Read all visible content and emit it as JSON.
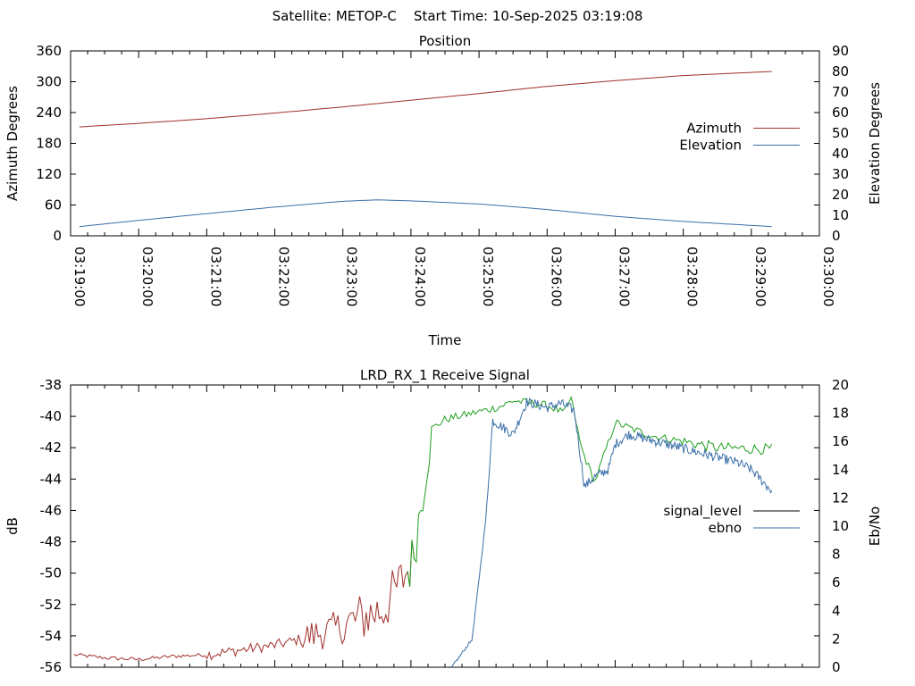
{
  "header": {
    "text": "Satellite: METOP-C    Start Time: 10-Sep-2025 03:19:08"
  },
  "chart_data": [
    {
      "type": "line",
      "title": "Position",
      "xlabel": "Time",
      "ylabel": "Azimuth Degrees",
      "y2label": "Elevation Degrees",
      "x_tick_labels": [
        "03:19:00",
        "03:20:00",
        "03:21:00",
        "03:22:00",
        "03:23:00",
        "03:24:00",
        "03:25:00",
        "03:26:00",
        "03:27:00",
        "03:28:00",
        "03:29:00",
        "03:30:00"
      ],
      "ylim": [
        0,
        360
      ],
      "y_ticks": [
        0,
        60,
        120,
        180,
        240,
        300,
        360
      ],
      "y2lim": [
        0,
        90
      ],
      "y2_ticks": [
        0,
        10,
        20,
        30,
        40,
        50,
        60,
        70,
        80,
        90
      ],
      "xlim_minutes_after_0319": [
        0,
        11
      ],
      "legend_position": "right-middle",
      "series": [
        {
          "name": "Azimuth",
          "axis": "y",
          "color": "#a0302a",
          "x_minutes_after_0319": [
            0.13,
            1,
            2,
            3,
            4,
            5,
            6,
            7,
            8,
            9,
            10.3
          ],
          "values": [
            212,
            219,
            228,
            239,
            251,
            264,
            277,
            291,
            302,
            312,
            320
          ]
        },
        {
          "name": "Elevation",
          "axis": "y2",
          "color": "#3a6fa8",
          "x_minutes_after_0319": [
            0.13,
            1,
            2,
            3,
            4,
            4.5,
            5,
            6,
            7,
            8,
            9,
            10.3
          ],
          "values": [
            4.5,
            7.5,
            10.8,
            14.0,
            16.8,
            17.5,
            17.0,
            15.5,
            12.8,
            9.5,
            7.0,
            4.5
          ]
        }
      ]
    },
    {
      "type": "line",
      "title": "LRD_RX_1 Receive Signal",
      "ylabel": "dB",
      "y2label": "Eb/No",
      "ylim": [
        -56,
        -38
      ],
      "y_ticks": [
        -56,
        -54,
        -52,
        -50,
        -48,
        -46,
        -44,
        -42,
        -40,
        -38
      ],
      "y2lim": [
        0,
        20
      ],
      "y2_ticks": [
        0,
        2,
        4,
        6,
        8,
        10,
        12,
        14,
        16,
        18,
        20
      ],
      "xlim_minutes_after_0319": [
        0,
        11
      ],
      "legend_position": "right-middle",
      "series": [
        {
          "name": "signal_level",
          "axis": "y",
          "color_low": "#a0302a",
          "color_high": "#1fa01f",
          "legend_color": "#000000",
          "x_minutes_after_0319": [
            0.05,
            0.5,
            1.0,
            1.5,
            2.0,
            2.5,
            3.0,
            3.3,
            3.6,
            4.0,
            4.3,
            4.6,
            5.0,
            5.05,
            5.3,
            5.5,
            6.0,
            6.3,
            6.5,
            7.0,
            7.25,
            7.35,
            7.5,
            7.7,
            8.0,
            8.5,
            9.0,
            9.5,
            10.3
          ],
          "values": [
            -55.2,
            -55.4,
            -55.5,
            -55.3,
            -55.2,
            -54.9,
            -54.6,
            -54.3,
            -53.9,
            -53.4,
            -52.8,
            -52.3,
            -49.5,
            -48.5,
            -40.8,
            -40.2,
            -39.7,
            -39.4,
            -39.0,
            -39.3,
            -39.8,
            -38.8,
            -42.0,
            -44.2,
            -40.4,
            -41.2,
            -41.6,
            -42.0,
            -42.1
          ]
        },
        {
          "name": "ebno",
          "axis": "y2",
          "color": "#3a6fa8",
          "x_minutes_after_0319": [
            5.6,
            5.9,
            6.1,
            6.2,
            6.5,
            6.7,
            7.0,
            7.2,
            7.4,
            7.55,
            7.7,
            7.9,
            8.0,
            8.2,
            8.6,
            9.0,
            9.4,
            9.8,
            10.0,
            10.3
          ],
          "values": [
            0.0,
            2.0,
            10.5,
            17.5,
            16.5,
            18.8,
            18.4,
            18.7,
            18.2,
            12.8,
            13.5,
            14.0,
            15.8,
            16.5,
            16.0,
            15.5,
            15.0,
            14.5,
            14.0,
            12.5
          ]
        }
      ]
    }
  ]
}
